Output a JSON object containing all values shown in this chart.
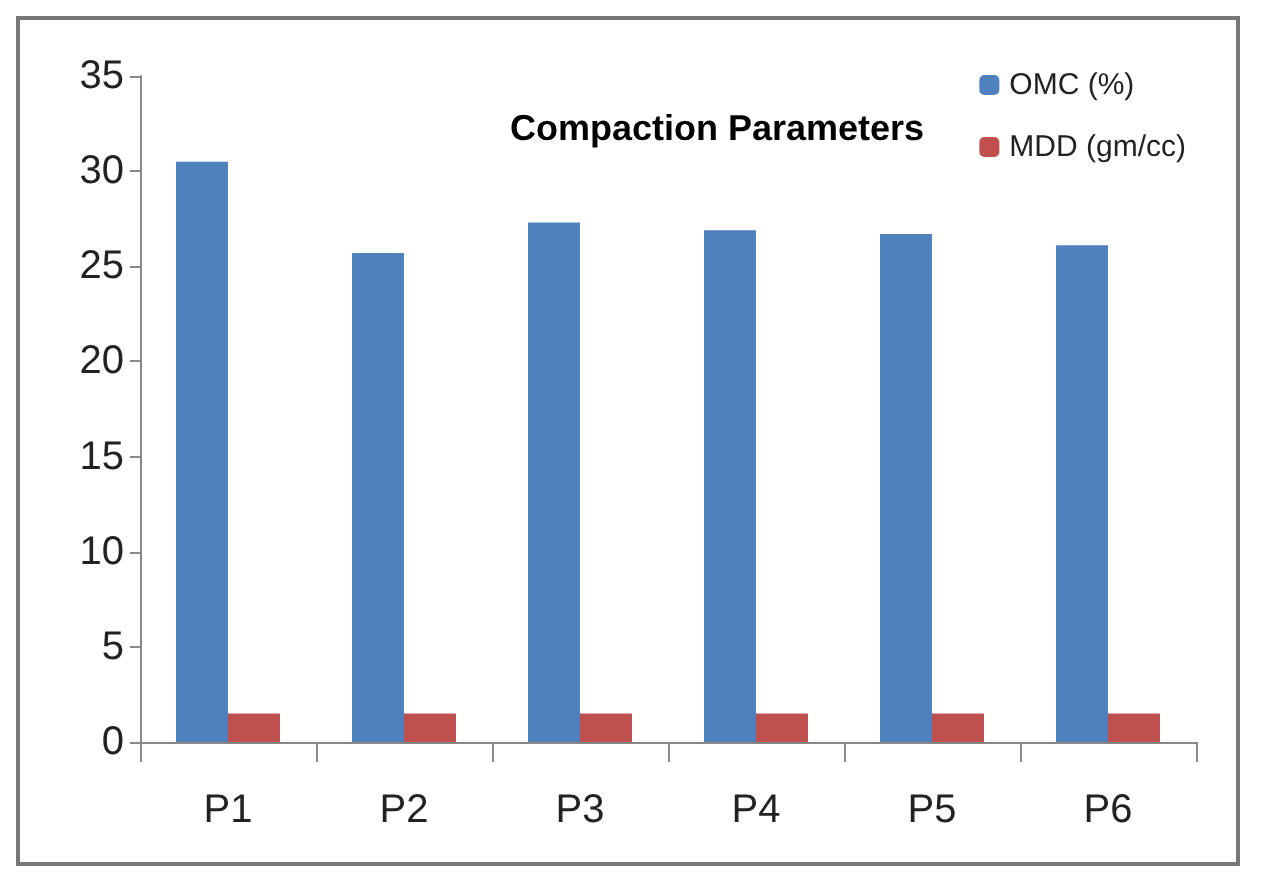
{
  "chart_data": {
    "type": "bar",
    "title": "Compaction Parameters",
    "categories": [
      "P1",
      "P2",
      "P3",
      "P4",
      "P5",
      "P6"
    ],
    "series": [
      {
        "name": "OMC (%)",
        "color": "#4f81bd",
        "values": [
          30.5,
          25.7,
          27.3,
          26.9,
          26.7,
          26.1
        ]
      },
      {
        "name": "MDD (gm/cc)",
        "color": "#c0504d",
        "values": [
          1.5,
          1.5,
          1.5,
          1.5,
          1.5,
          1.5
        ]
      }
    ],
    "ylim": [
      0,
      35
    ],
    "yticks": [
      0,
      5,
      10,
      15,
      20,
      25,
      30,
      35
    ],
    "grid": false,
    "legend": "top right"
  }
}
